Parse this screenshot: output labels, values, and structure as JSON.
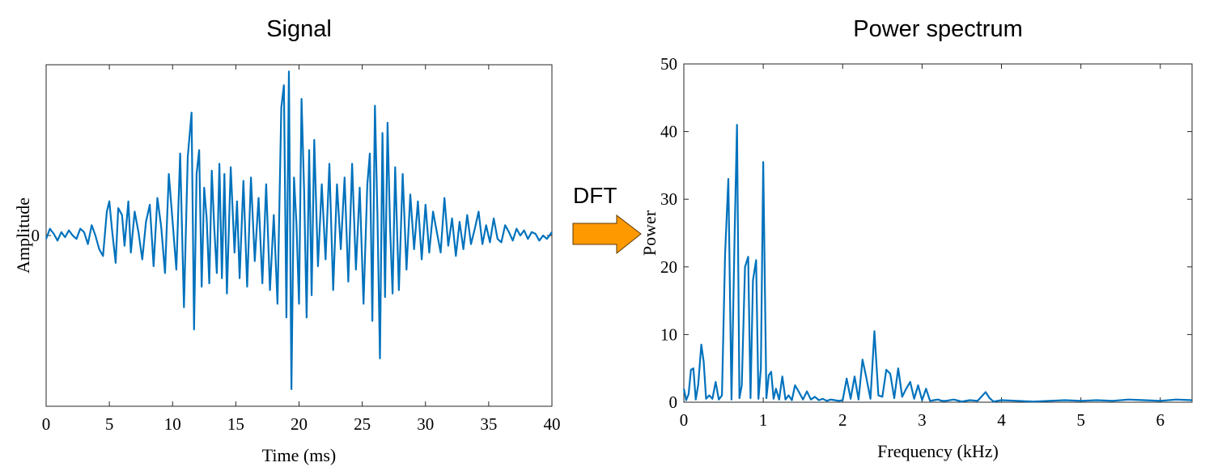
{
  "arrow": {
    "label": "DFT",
    "color": "#FF9900"
  },
  "chart_data": [
    {
      "type": "line",
      "title": "Signal",
      "xlabel": "Time (ms)",
      "ylabel": "Amplitude",
      "xlim": [
        0,
        40
      ],
      "ylim": [
        -1.0,
        1.0
      ],
      "xticks": [
        "0",
        "5",
        "10",
        "15",
        "20",
        "25",
        "30",
        "35",
        "40"
      ],
      "yticks": [
        "0"
      ],
      "grid": false,
      "series": [
        {
          "name": "signal",
          "color": "#0072BD",
          "x": [
            0,
            0.3,
            0.6,
            0.9,
            1.2,
            1.5,
            1.8,
            2.1,
            2.4,
            2.7,
            3.0,
            3.3,
            3.6,
            3.9,
            4.2,
            4.5,
            4.8,
            5.0,
            5.2,
            5.5,
            5.7,
            6.0,
            6.2,
            6.5,
            6.7,
            7.0,
            7.3,
            7.6,
            7.9,
            8.2,
            8.5,
            8.8,
            9.1,
            9.4,
            9.7,
            10.0,
            10.3,
            10.6,
            10.9,
            11.2,
            11.5,
            11.7,
            11.9,
            12.1,
            12.3,
            12.5,
            12.7,
            12.9,
            13.1,
            13.3,
            13.5,
            13.7,
            13.9,
            14.1,
            14.3,
            14.6,
            14.9,
            15.1,
            15.3,
            15.6,
            15.9,
            16.2,
            16.5,
            16.8,
            17.1,
            17.4,
            17.7,
            18.0,
            18.3,
            18.6,
            18.8,
            19.0,
            19.2,
            19.4,
            19.6,
            19.8,
            20.0,
            20.2,
            20.4,
            20.6,
            20.8,
            21.0,
            21.2,
            21.5,
            21.8,
            22.1,
            22.4,
            22.7,
            23.0,
            23.3,
            23.6,
            23.9,
            24.2,
            24.5,
            24.8,
            25.1,
            25.4,
            25.6,
            25.8,
            26.0,
            26.2,
            26.4,
            26.6,
            26.8,
            27.0,
            27.2,
            27.4,
            27.6,
            27.9,
            28.2,
            28.5,
            28.8,
            29.1,
            29.4,
            29.7,
            30.0,
            30.3,
            30.6,
            30.9,
            31.2,
            31.5,
            31.8,
            32.1,
            32.4,
            32.7,
            33.0,
            33.3,
            33.6,
            33.9,
            34.2,
            34.5,
            34.8,
            35.1,
            35.4,
            35.7,
            36.0,
            36.3,
            36.6,
            36.9,
            37.2,
            37.5,
            37.8,
            38.1,
            38.4,
            38.7,
            39.0,
            39.3,
            39.6,
            40.0
          ],
          "y": [
            -0.02,
            0.04,
            0.01,
            -0.03,
            0.02,
            -0.01,
            0.03,
            0.0,
            -0.02,
            0.04,
            0.02,
            -0.05,
            0.06,
            0.0,
            -0.08,
            -0.12,
            0.14,
            0.2,
            0.04,
            -0.16,
            0.16,
            0.12,
            -0.06,
            0.2,
            -0.1,
            0.14,
            0.02,
            -0.14,
            0.08,
            0.18,
            -0.18,
            0.22,
            0.05,
            -0.22,
            0.36,
            0.08,
            -0.2,
            0.48,
            -0.42,
            0.46,
            0.72,
            -0.55,
            0.36,
            0.5,
            -0.3,
            0.28,
            0.1,
            -0.28,
            0.38,
            0.04,
            -0.22,
            0.42,
            -0.25,
            0.36,
            -0.34,
            0.4,
            -0.1,
            0.2,
            -0.25,
            0.32,
            -0.3,
            0.34,
            -0.15,
            0.22,
            -0.28,
            0.3,
            -0.32,
            0.12,
            -0.4,
            0.75,
            0.88,
            -0.48,
            0.96,
            -0.9,
            0.34,
            0.06,
            -0.4,
            0.8,
            0.26,
            -0.48,
            0.5,
            -0.35,
            0.56,
            -0.18,
            0.3,
            -0.14,
            0.42,
            -0.32,
            0.3,
            -0.08,
            0.34,
            -0.27,
            0.42,
            -0.2,
            0.28,
            -0.4,
            0.3,
            0.48,
            -0.5,
            0.76,
            0.12,
            -0.72,
            0.6,
            -0.36,
            0.66,
            0.05,
            -0.34,
            0.4,
            -0.32,
            0.36,
            -0.2,
            0.24,
            -0.08,
            0.2,
            -0.14,
            0.18,
            -0.1,
            0.14,
            0.02,
            -0.1,
            0.22,
            -0.06,
            0.1,
            -0.12,
            0.08,
            -0.08,
            0.12,
            -0.05,
            0.04,
            0.14,
            -0.05,
            0.06,
            -0.04,
            0.1,
            -0.02,
            -0.04,
            0.06,
            0.02,
            -0.03,
            0.04,
            0.0,
            0.03,
            -0.02,
            0.02,
            0.01,
            -0.03,
            0.0,
            -0.02,
            0.02
          ]
        }
      ]
    },
    {
      "type": "line",
      "title": "Power spectrum",
      "xlabel": "Frequency (kHz)",
      "ylabel": "Power",
      "xlim": [
        0,
        6.4
      ],
      "ylim": [
        0,
        50
      ],
      "xticks": [
        "0",
        "1",
        "2",
        "3",
        "4",
        "5",
        "6"
      ],
      "yticks": [
        "0",
        "10",
        "20",
        "30",
        "40",
        "50"
      ],
      "grid": false,
      "series": [
        {
          "name": "power",
          "color": "#0072BD",
          "x": [
            0,
            0.03,
            0.06,
            0.09,
            0.12,
            0.15,
            0.18,
            0.22,
            0.25,
            0.28,
            0.32,
            0.36,
            0.4,
            0.44,
            0.48,
            0.52,
            0.56,
            0.6,
            0.64,
            0.67,
            0.7,
            0.73,
            0.77,
            0.81,
            0.84,
            0.87,
            0.91,
            0.94,
            0.97,
            1.0,
            1.04,
            1.07,
            1.1,
            1.13,
            1.16,
            1.2,
            1.24,
            1.28,
            1.32,
            1.36,
            1.4,
            1.45,
            1.5,
            1.55,
            1.6,
            1.65,
            1.7,
            1.75,
            1.8,
            1.85,
            1.9,
            1.95,
            2.0,
            2.05,
            2.1,
            2.15,
            2.2,
            2.25,
            2.3,
            2.35,
            2.4,
            2.45,
            2.5,
            2.55,
            2.6,
            2.65,
            2.7,
            2.75,
            2.8,
            2.85,
            2.9,
            2.95,
            3.0,
            3.05,
            3.1,
            3.15,
            3.2,
            3.25,
            3.3,
            3.4,
            3.5,
            3.6,
            3.7,
            3.8,
            3.85,
            3.9,
            4.0,
            4.2,
            4.4,
            4.6,
            4.8,
            5.0,
            5.2,
            5.4,
            5.6,
            5.8,
            6.0,
            6.2,
            6.4
          ],
          "y": [
            2.0,
            0.3,
            1.2,
            4.8,
            5.0,
            0.4,
            2.5,
            8.5,
            6.0,
            0.5,
            1.0,
            0.5,
            3.0,
            0.4,
            1.0,
            22.0,
            33.0,
            0.4,
            25.0,
            41.0,
            0.6,
            2.5,
            20.0,
            21.5,
            0.6,
            18.0,
            21.0,
            0.5,
            5.0,
            35.5,
            0.6,
            4.0,
            4.5,
            0.5,
            2.0,
            0.4,
            3.8,
            0.4,
            1.0,
            0.3,
            2.5,
            1.5,
            0.4,
            1.6,
            0.4,
            0.8,
            0.3,
            0.5,
            0.2,
            0.4,
            0.3,
            0.2,
            0.3,
            3.5,
            0.5,
            3.8,
            0.4,
            6.3,
            3.5,
            0.5,
            10.5,
            1.0,
            0.8,
            4.8,
            4.2,
            0.6,
            5.0,
            0.8,
            2.0,
            3.0,
            0.5,
            2.5,
            0.3,
            2.0,
            0.2,
            0.3,
            0.4,
            0.2,
            0.2,
            0.4,
            0.1,
            0.3,
            0.2,
            1.5,
            0.6,
            0.1,
            0.3,
            0.2,
            0.1,
            0.2,
            0.3,
            0.2,
            0.3,
            0.2,
            0.4,
            0.3,
            0.2,
            0.4,
            0.3
          ]
        }
      ]
    }
  ]
}
